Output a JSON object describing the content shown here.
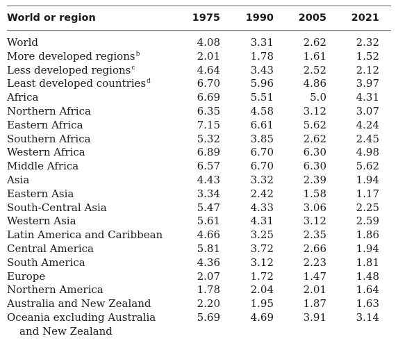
{
  "table": {
    "columns": [
      "World or region",
      "1975",
      "1990",
      "2005",
      "2021"
    ],
    "rows": [
      {
        "region": "World",
        "note": "",
        "v1975": "4.08",
        "v1990": "3.31",
        "v2005": "2.62",
        "v2021": "2.32"
      },
      {
        "region": "More developed regions",
        "note": "b",
        "v1975": "2.01",
        "v1990": "1.78",
        "v2005": "1.61",
        "v2021": "1.52"
      },
      {
        "region": "Less developed regions",
        "note": "c",
        "v1975": "4.64",
        "v1990": "3.43",
        "v2005": "2.52",
        "v2021": "2.12"
      },
      {
        "region": "Least developed countries",
        "note": "d",
        "v1975": "6.70",
        "v1990": "5.96",
        "v2005": "4.86",
        "v2021": "3.97"
      },
      {
        "region": "Africa",
        "note": "",
        "v1975": "6.69",
        "v1990": "5.51",
        "v2005": "5.0",
        "v2021": "4.31"
      },
      {
        "region": "Northern Africa",
        "note": "",
        "v1975": "6.35",
        "v1990": "4.58",
        "v2005": "3.12",
        "v2021": "3.07"
      },
      {
        "region": "Eastern Africa",
        "note": "",
        "v1975": "7.15",
        "v1990": "6.61",
        "v2005": "5.62",
        "v2021": "4.24"
      },
      {
        "region": "Southern Africa",
        "note": "",
        "v1975": "5.32",
        "v1990": "3.85",
        "v2005": "2.62",
        "v2021": "2.45"
      },
      {
        "region": "Western Africa",
        "note": "",
        "v1975": "6.89",
        "v1990": "6.70",
        "v2005": "6.30",
        "v2021": "4.98"
      },
      {
        "region": "Middle Africa",
        "note": "",
        "v1975": "6.57",
        "v1990": "6.70",
        "v2005": "6.30",
        "v2021": "5.62"
      },
      {
        "region": "Asia",
        "note": "",
        "v1975": "4.43",
        "v1990": "3.32",
        "v2005": "2.39",
        "v2021": "1.94"
      },
      {
        "region": "Eastern Asia",
        "note": "",
        "v1975": "3.34",
        "v1990": "2.42",
        "v2005": "1.58",
        "v2021": "1.17"
      },
      {
        "region": "South-Central Asia",
        "note": "",
        "v1975": "5.47",
        "v1990": "4.33",
        "v2005": "3.06",
        "v2021": "2.25"
      },
      {
        "region": "Western Asia",
        "note": "",
        "v1975": "5.61",
        "v1990": "4.31",
        "v2005": "3.12",
        "v2021": "2.59"
      },
      {
        "region": "Latin America and Caribbean",
        "note": "",
        "v1975": "4.66",
        "v1990": "3.25",
        "v2005": "2.35",
        "v2021": "1.86"
      },
      {
        "region": "Central America",
        "note": "",
        "v1975": "5.81",
        "v1990": "3.72",
        "v2005": "2.66",
        "v2021": "1.94"
      },
      {
        "region": "South America",
        "note": "",
        "v1975": "4.36",
        "v1990": "3.12",
        "v2005": "2.23",
        "v2021": "1.81"
      },
      {
        "region": "Europe",
        "note": "",
        "v1975": "2.07",
        "v1990": "1.72",
        "v2005": "1.47",
        "v2021": "1.48"
      },
      {
        "region": "Northern America",
        "note": "",
        "v1975": "1.78",
        "v1990": "2.04",
        "v2005": "2.01",
        "v2021": "1.64"
      },
      {
        "region": "Australia and New Zealand",
        "note": "",
        "v1975": "2.20",
        "v1990": "1.95",
        "v2005": "1.87",
        "v2021": "1.63"
      },
      {
        "region": "Oceania excluding Australia",
        "region_cont": "and New Zealand",
        "note": "",
        "v1975": "5.69",
        "v1990": "4.69",
        "v2005": "3.91",
        "v2021": "3.14"
      }
    ]
  }
}
